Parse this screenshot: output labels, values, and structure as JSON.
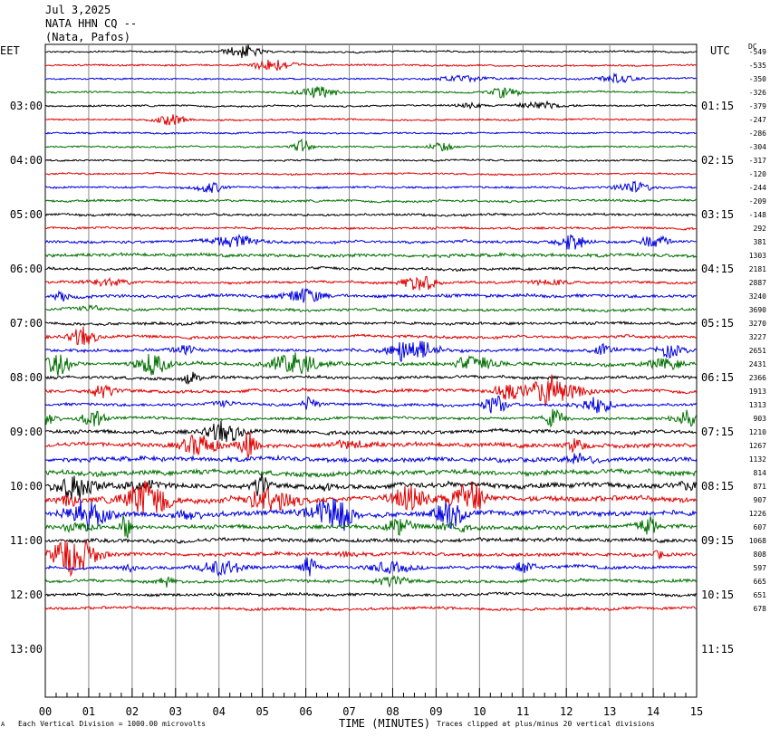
{
  "header": {
    "date": "Jul 3,2025",
    "station": "NATA HHN CQ --",
    "location": "(Nata, Pafos)"
  },
  "left_timezone": "EET",
  "right_timezone": "UTC",
  "dc_label": "DC",
  "footer": {
    "left_note": "Each Vertical Division = 1000.00 microvolts",
    "right_note": "Traces clipped at plus/minus 20 vertical divisions",
    "corner_mark": "A"
  },
  "chart_data": {
    "type": "helicorder",
    "xlabel": "TIME (MINUTES)",
    "x_ticks": [
      "00",
      "01",
      "02",
      "03",
      "04",
      "05",
      "06",
      "07",
      "08",
      "09",
      "10",
      "11",
      "12",
      "13",
      "14",
      "15"
    ],
    "xlim": [
      0,
      15
    ],
    "minutes_per_line": 15,
    "left_hour_labels": [
      "03:00",
      "04:00",
      "05:00",
      "06:00",
      "07:00",
      "08:00",
      "09:00",
      "10:00",
      "11:00",
      "12:00",
      "13:00"
    ],
    "right_hour_labels": [
      "01:15",
      "02:15",
      "03:15",
      "04:15",
      "05:15",
      "06:15",
      "07:15",
      "08:15",
      "09:15",
      "10:15",
      "11:15"
    ],
    "trace_colors": [
      "#000000",
      "#e00000",
      "#0000e0",
      "#007000"
    ],
    "dc_offsets": [
      "-549",
      "-535",
      "-350",
      "-326",
      "-379",
      "-247",
      "-286",
      "-304",
      "-317",
      "-120",
      "-244",
      "-209",
      "-148",
      "292",
      "381",
      "1303",
      "2181",
      "2887",
      "3240",
      "3690",
      "3270",
      "3227",
      "2651",
      "2431",
      "2366",
      "1913",
      "1313",
      "903",
      "1210",
      "1267",
      "1132",
      "814",
      "871",
      "907",
      "1226",
      "607",
      "1068",
      "808",
      "597",
      "665",
      "651",
      "678"
    ],
    "trace_activity": [
      1,
      1,
      1,
      1,
      1,
      1,
      1,
      1,
      1,
      1,
      1.2,
      1.3,
      1.4,
      1.3,
      1.6,
      1.9,
      1.6,
      1.5,
      1.9,
      1.7,
      1.7,
      1.7,
      1.8,
      2.0,
      1.8,
      1.9,
      1.7,
      1.6,
      2.2,
      2.5,
      2.6,
      2.9,
      3.0,
      3.1,
      3.0,
      2.4,
      2.2,
      2.0,
      1.9,
      1.8,
      1.7,
      1.6
    ]
  }
}
